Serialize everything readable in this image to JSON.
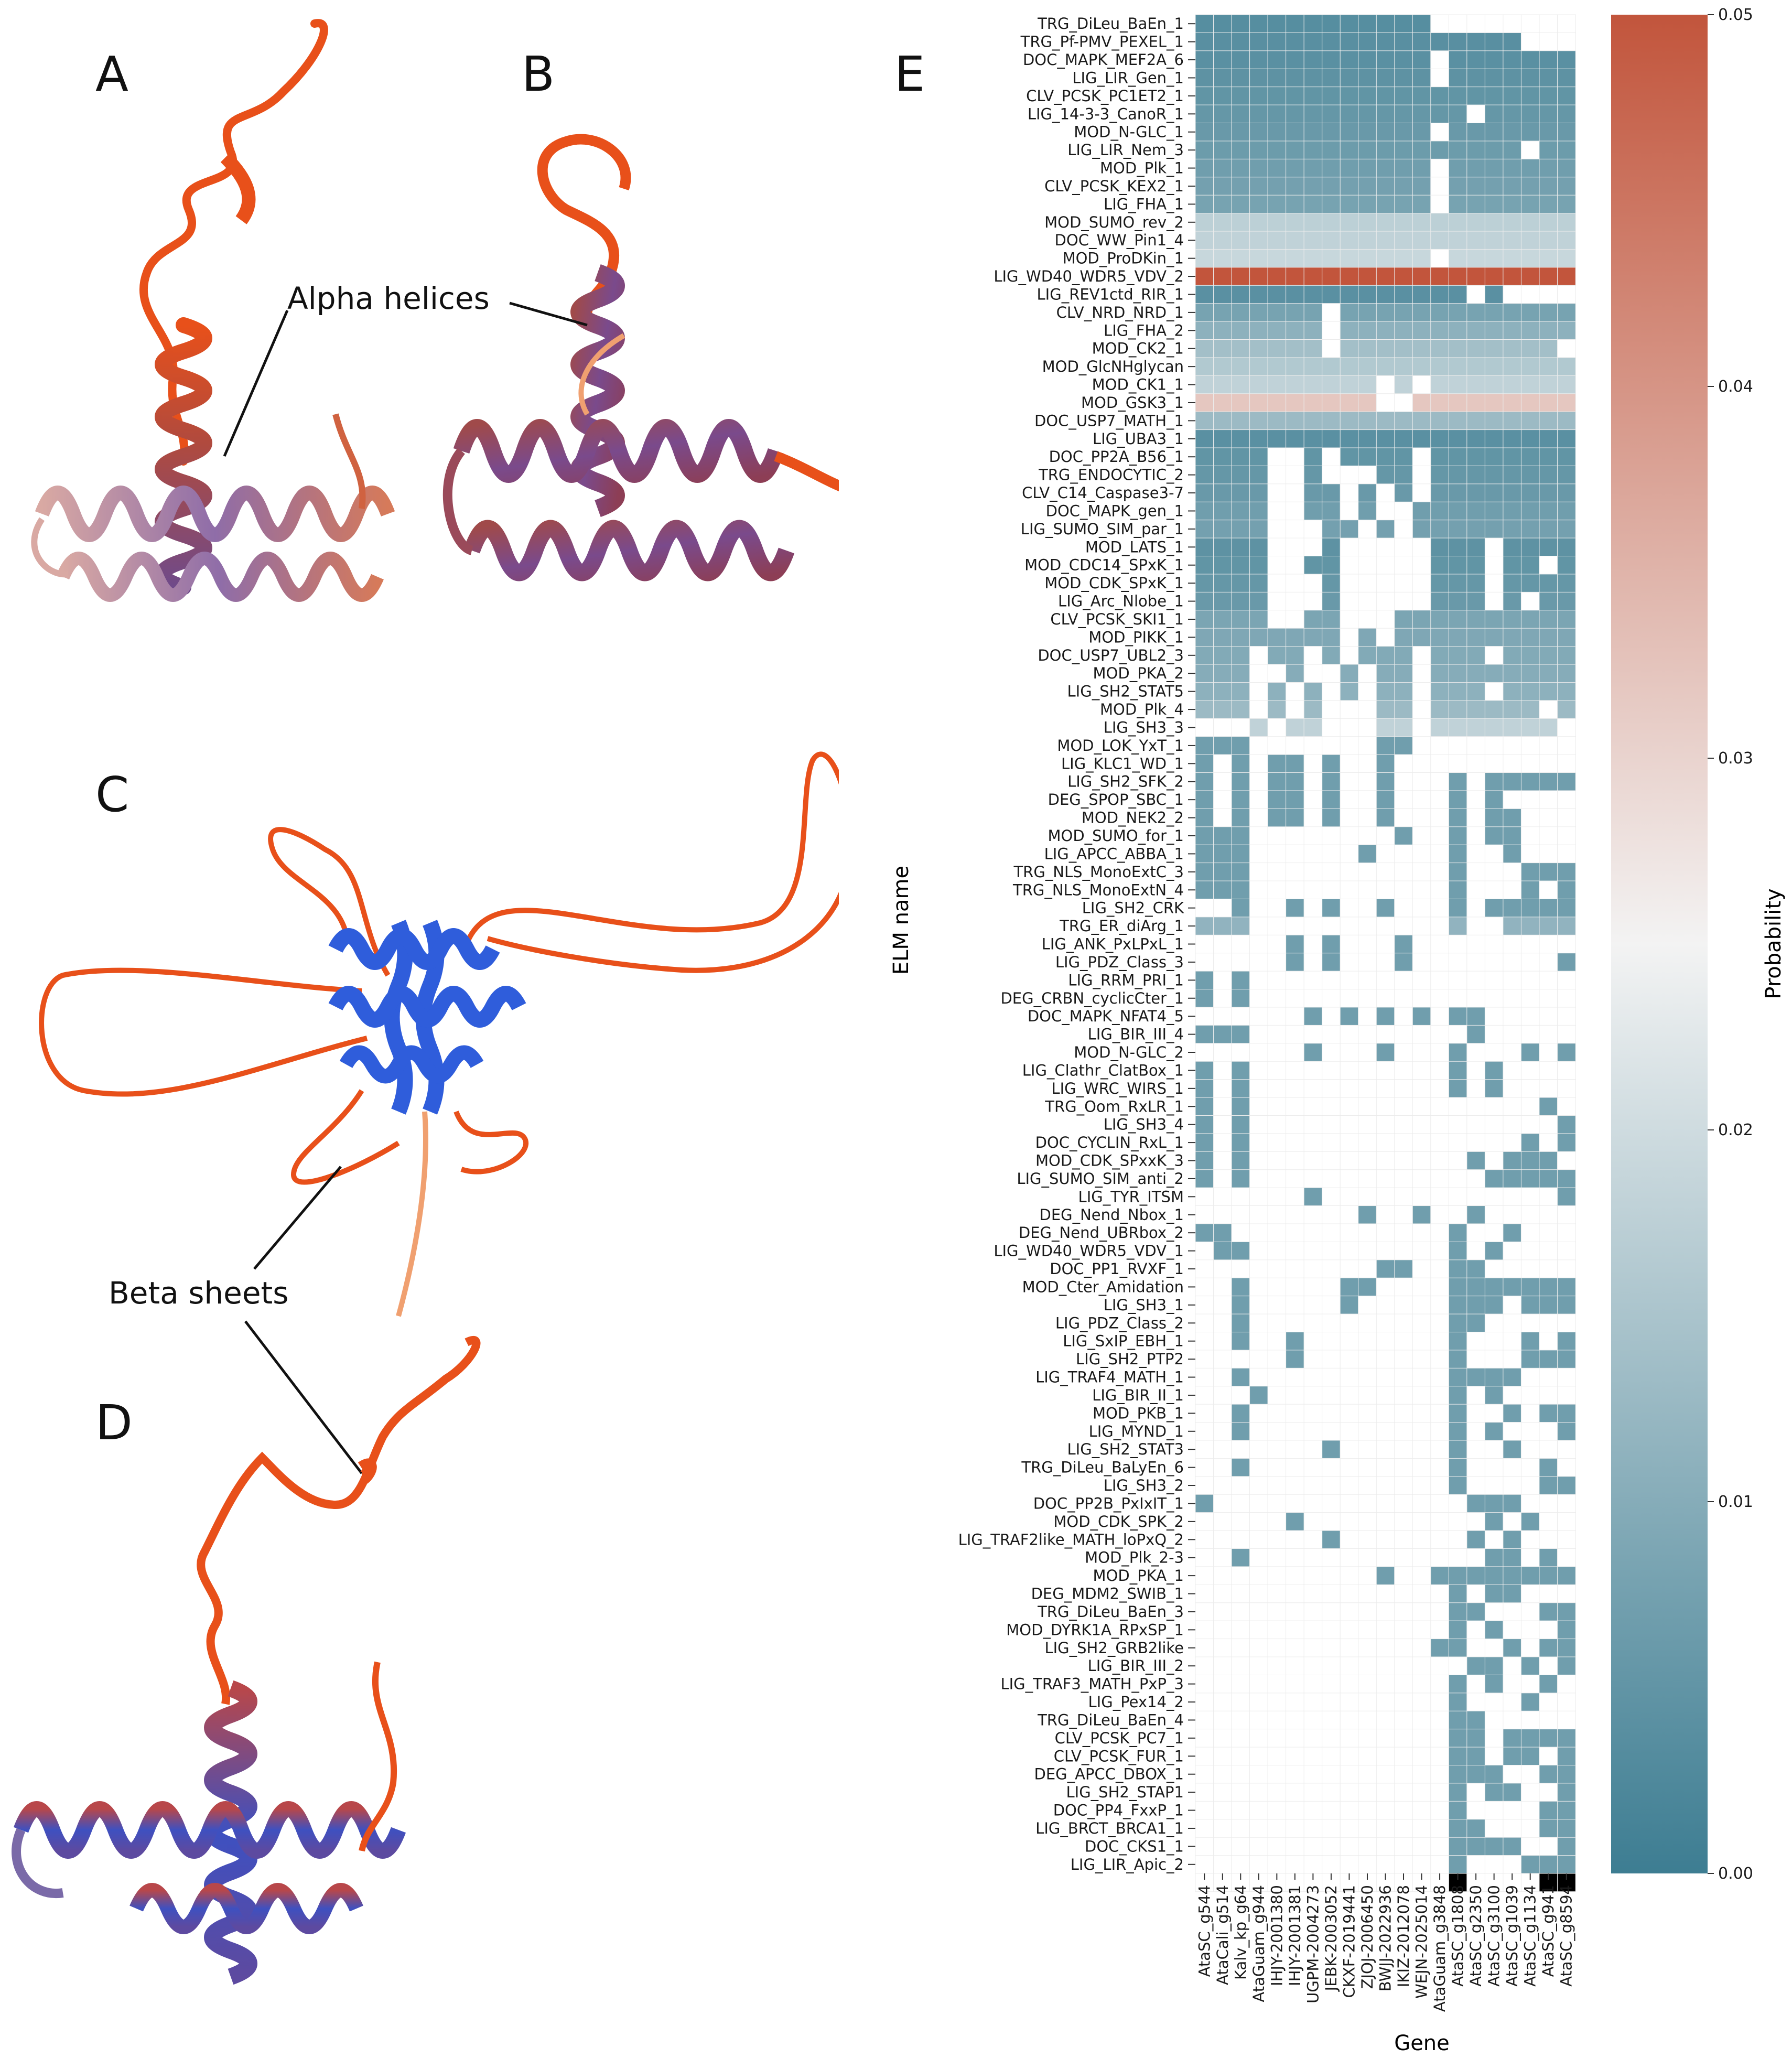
{
  "panel_labels": {
    "a": "A",
    "b": "B",
    "c": "C",
    "d": "D",
    "e": "E"
  },
  "annotations": {
    "alpha": "Alpha helices",
    "beta": "Beta sheets"
  },
  "colors": {
    "low": "#3d7d92",
    "mid": "#f3f3f3",
    "high": "#c2553c",
    "coil": "#e8501a",
    "helix_blue": "#2f5ddb",
    "helix_purple": "#7a4a8c"
  },
  "chart_data": {
    "type": "heatmap",
    "title": "",
    "xlabel": "Gene",
    "ylabel": "ELM name",
    "colorbar_label": "Probability",
    "colorbar_ticks": [
      "0.00",
      "0.01",
      "0.02",
      "0.03",
      "0.04",
      "0.05"
    ],
    "vmin": 0.0,
    "vmax": 0.05,
    "genes": [
      "AtaSC_g544",
      "AtaCali_g514",
      "Kalv_kp_g64",
      "AtaGuam_g944",
      "IHJY-2001380",
      "IHJY-2001381",
      "UGPM-2004273",
      "JEBK-2003052",
      "CKXF-2019441",
      "ZJOJ-2006450",
      "BWJJ-2022936",
      "IKIZ-2012078",
      "WEJN-2025014",
      "AtaGuam_g3848",
      "AtaSC_g1808",
      "AtaSC_g2350",
      "AtaSC_g3100",
      "AtaSC_g1039",
      "AtaSC_g1134",
      "AtaSC_g941",
      "AtaSC_g8594"
    ],
    "elms": [
      "TRG_DiLeu_BaEn_1",
      "TRG_Pf-PMV_PEXEL_1",
      "DOC_MAPK_MEF2A_6",
      "LIG_LIR_Gen_1",
      "CLV_PCSK_PC1ET2_1",
      "LIG_14-3-3_CanoR_1",
      "MOD_N-GLC_1",
      "LIG_LIR_Nem_3",
      "MOD_Plk_1",
      "CLV_PCSK_KEX2_1",
      "LIG_FHA_1",
      "MOD_SUMO_rev_2",
      "DOC_WW_Pin1_4",
      "MOD_ProDKin_1",
      "LIG_WD40_WDR5_VDV_2",
      "LIG_REV1ctd_RIR_1",
      "CLV_NRD_NRD_1",
      "LIG_FHA_2",
      "MOD_CK2_1",
      "MOD_GlcNHglycan",
      "MOD_CK1_1",
      "MOD_GSK3_1",
      "DOC_USP7_MATH_1",
      "LIG_UBA3_1",
      "DOC_PP2A_B56_1",
      "TRG_ENDOCYTIC_2",
      "CLV_C14_Caspase3-7",
      "DOC_MAPK_gen_1",
      "LIG_SUMO_SIM_par_1",
      "MOD_LATS_1",
      "MOD_CDC14_SPxK_1",
      "MOD_CDK_SPxK_1",
      "LIG_Arc_Nlobe_1",
      "CLV_PCSK_SKI1_1",
      "MOD_PIKK_1",
      "DOC_USP7_UBL2_3",
      "MOD_PKA_2",
      "LIG_SH2_STAT5",
      "MOD_Plk_4",
      "LIG_SH3_3",
      "MOD_LOK_YxT_1",
      "LIG_KLC1_WD_1",
      "LIG_SH2_SFK_2",
      "DEG_SPOP_SBC_1",
      "MOD_NEK2_2",
      "MOD_SUMO_for_1",
      "LIG_APCC_ABBA_1",
      "TRG_NLS_MonoExtC_3",
      "TRG_NLS_MonoExtN_4",
      "LIG_SH2_CRK",
      "TRG_ER_diArg_1",
      "LIG_ANK_PxLPxL_1",
      "LIG_PDZ_Class_3",
      "LIG_RRM_PRI_1",
      "DEG_CRBN_cyclicCter_1",
      "DOC_MAPK_NFAT4_5",
      "LIG_BIR_III_4",
      "MOD_N-GLC_2",
      "LIG_Clathr_ClatBox_1",
      "LIG_WRC_WIRS_1",
      "TRG_Oom_RxLR_1",
      "LIG_SH3_4",
      "DOC_CYCLIN_RxL_1",
      "MOD_CDK_SPxxK_3",
      "LIG_SUMO_SIM_anti_2",
      "LIG_TYR_ITSM",
      "DEG_Nend_Nbox_1",
      "DEG_Nend_UBRbox_2",
      "LIG_WD40_WDR5_VDV_1",
      "DOC_PP1_RVXF_1",
      "MOD_Cter_Amidation",
      "LIG_SH3_1",
      "LIG_PDZ_Class_2",
      "LIG_SxIP_EBH_1",
      "LIG_SH2_PTP2",
      "LIG_TRAF4_MATH_1",
      "LIG_BIR_II_1",
      "MOD_PKB_1",
      "LIG_MYND_1",
      "LIG_SH2_STAT3",
      "TRG_DiLeu_BaLyEn_6",
      "LIG_SH3_2",
      "DOC_PP2B_PxIxIT_1",
      "MOD_CDK_SPK_2",
      "LIG_TRAF2like_MATH_loPxQ_2",
      "MOD_Plk_2-3",
      "MOD_PKA_1",
      "DEG_MDM2_SWIB_1",
      "TRG_DiLeu_BaEn_3",
      "MOD_DYRK1A_RPxSP_1",
      "LIG_SH2_GRB2like",
      "LIG_BIR_III_2",
      "LIG_TRAF3_MATH_PxP_3",
      "LIG_Pex14_2",
      "TRG_DiLeu_BaEn_4",
      "CLV_PCSK_PC7_1",
      "CLV_PCSK_FUR_1",
      "DEG_APCC_DBOX_1",
      "LIG_SH2_STAP1",
      "DOC_PP4_FxxP_1",
      "LIG_BRCT_BRCA1_1",
      "DOC_CKS1_1",
      "LIG_LIR_Apic_2"
    ],
    "row_probability": [
      0.0035,
      0.0038,
      0.004,
      0.0045,
      0.005,
      0.0055,
      0.006,
      0.0065,
      0.007,
      0.0075,
      0.008,
      0.0175,
      0.018,
      0.019,
      0.05,
      0.004,
      0.008,
      0.011,
      0.014,
      0.016,
      0.018,
      0.032,
      0.013,
      0.004,
      0.005,
      0.0055,
      0.006,
      0.007,
      0.0075,
      0.0045,
      0.005,
      0.0055,
      0.006,
      0.0085,
      0.009,
      0.0095,
      0.01,
      0.011,
      0.013,
      0.018,
      0.007,
      0.007,
      0.007,
      0.007,
      0.007,
      0.007,
      0.007,
      0.007,
      0.007,
      0.007,
      0.0115,
      0.007,
      0.007,
      0.007,
      0.007,
      0.007,
      0.007,
      0.007,
      0.007,
      0.007,
      0.007,
      0.007,
      0.007,
      0.007,
      0.007,
      0.007,
      0.007,
      0.007,
      0.007,
      0.007,
      0.007,
      0.007,
      0.007,
      0.007,
      0.007,
      0.007,
      0.007,
      0.007,
      0.007,
      0.007,
      0.007,
      0.007,
      0.007,
      0.007,
      0.007,
      0.007,
      0.007,
      0.007,
      0.007,
      0.007,
      0.007,
      0.007,
      0.007,
      0.007,
      0.007,
      0.007,
      0.007,
      0.007,
      0.007,
      0.007,
      0.007,
      0.007,
      0.007
    ],
    "present": [
      "111111111111100000000",
      "111111111111111111000",
      "111111111111101111111",
      "111111111111101111111",
      "111111111111111111111",
      "111111111111111011111",
      "111111111111101111111",
      "111111111111111111011",
      "111111111111101111111",
      "111111111111101111111",
      "111111111111101111111",
      "111111111111111111111",
      "111111111111111111111",
      "111111111111101111111",
      "111111111111111111111",
      "111111111111111010000",
      "111111101111111111111",
      "111111101111111111111",
      "111111101111111111110",
      "111111111111111111111",
      "111111111101011111111",
      "111111111100111111111",
      "111111111111111111111",
      "111111111111111111111",
      "111100101111011111111",
      "111100100011011111111",
      "111100110101011111111",
      "111100110100111111111",
      "111100011010111111111",
      "111100010000011101111",
      "111100110000011101101",
      "111100010000011101111",
      "111100010000011101011",
      "111100110001111111111",
      "111111110101111111111",
      "111011010111011101111",
      "111001001011011111111",
      "111010101011011101111",
      "111010100011011111101",
      "000101100011011111110",
      "111000000011000000000",
      "101011010010000000000",
      "101011010010001011111",
      "101011010010001010000",
      "101011010010001011000",
      "111000000001001011000",
      "111000000100001001000",
      "111000000000001000111",
      "111000000000001000101",
      "001001010010001011111",
      "111000000000001001111",
      "000001010001000000000",
      "000001010001000000001",
      "101000000000000000000",
      "101000000000000000000",
      "000000101010101100000",
      "111000000000000100000",
      "000000100010001000101",
      "101000000000001010000",
      "101000000000001010000",
      "101000000000000000010",
      "101000000000000000001",
      "101000000000000000101",
      "101000000000000101110",
      "101000000000000011111",
      "000000100000000000001",
      "000000000100100100000",
      "110000000000001001000",
      "011000000000001010000",
      "000000000011001100000",
      "001000001100001111111",
      "001000001000001110111",
      "001000000000001100000",
      "001001000000001000101",
      "000001000000001000111",
      "001000000000001111000",
      "000100000000001010000",
      "001000000000001001011",
      "001000000000001010001",
      "000000010000001001000",
      "001000000000001000010",
      "000000000000001000011",
      "100000000000000111000",
      "000001000000000010100",
      "000000010000000101000",
      "001000000000000011010",
      "000000000010011111111",
      "000000000000001011000",
      "000000000000001100011",
      "000000000000001010001",
      "000000000000011001011",
      "000000000000000110101",
      "000000000000001010010",
      "000000000000001000100",
      "000000000000001100000",
      "000000000000001101111",
      "000000000000001101101",
      "000000000000001110011",
      "000000000000001011001",
      "000000000000001000011",
      "000000000000001100011",
      "000000000000001111001",
      "000000000000001000111",
      "000000000000001000011"
    ]
  }
}
